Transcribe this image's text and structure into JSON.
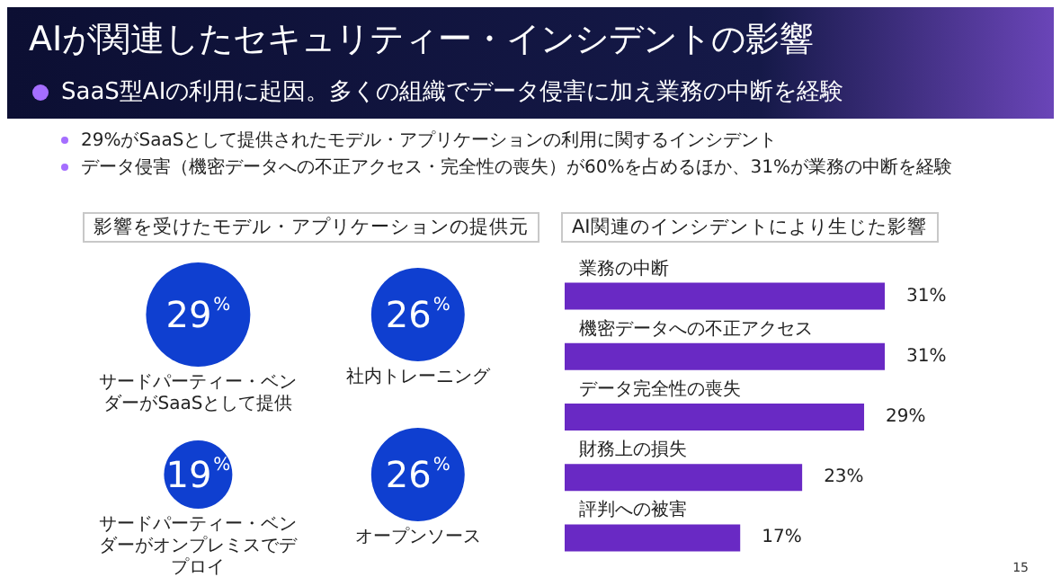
{
  "chart_data": [
    {
      "type": "other",
      "title": "AIが関連したセキュリティー・インシデントの影響",
      "subtitle": "SaaS型AIの利用に起因。多くの組織でデータ侵害に加え業務の中断を経験",
      "annotations": [
        "29%がSaaSとして提供されたモデル・アプリケーションの利用に関するインシデント",
        "データ侵害（機密データへの不正アクセス・完全性の喪失）が60%を占めるほか、31%が業務の中断を経験",
        "15"
      ]
    },
    {
      "type": "other",
      "title": "影響を受けたモデル・アプリケーションの提供元",
      "categories": [
        "サードパーティー・ベンダーがSaaSとして提供",
        "社内トレーニング",
        "サードパーティー・ベンダーがオンプレミスでデプロイ",
        "オープンソース"
      ],
      "values": [
        29,
        26,
        19,
        26
      ],
      "value_labels": [
        "29%",
        "26%",
        "19%",
        "26%"
      ],
      "color": "#0f3fd0"
    },
    {
      "type": "bar",
      "orientation": "horizontal",
      "title": "AI関連のインシデントにより生じた影響",
      "categories": [
        "業務の中断",
        "機密データへの不正アクセス",
        "データ完全性の喪失",
        "財務上の損失",
        "評判への被害"
      ],
      "values": [
        31,
        31,
        29,
        23,
        17
      ],
      "value_labels": [
        "31%",
        "31%",
        "29%",
        "23%",
        "17%"
      ],
      "color": "#6929c4",
      "tick_labels": "y"
    }
  ]
}
